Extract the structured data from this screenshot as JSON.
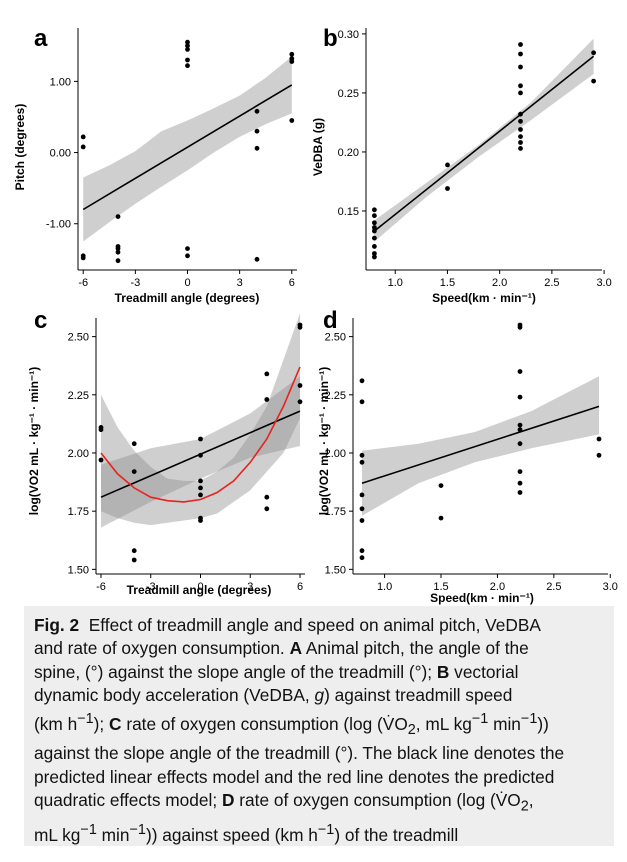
{
  "chart_data": [
    {
      "panel": "a",
      "type": "scatter",
      "xlabel": "Treadmill angle (degrees)",
      "ylabel": "Pitch (degrees)",
      "xlim": [
        -6.3,
        6.3
      ],
      "ylim": [
        -1.65,
        1.75
      ],
      "xticks": [
        -6,
        -3,
        0,
        3,
        6
      ],
      "yticks": [
        -1.0,
        0.0,
        1.0
      ],
      "ytick_labels": [
        "-1.00",
        "0.00",
        "1.00"
      ],
      "grid": false,
      "points": [
        [
          -6,
          0.22
        ],
        [
          -6,
          0.08
        ],
        [
          -6,
          -1.45
        ],
        [
          -6,
          -1.48
        ],
        [
          -4,
          -0.9
        ],
        [
          -4,
          -1.32
        ],
        [
          -4,
          -1.35
        ],
        [
          -4,
          -1.4
        ],
        [
          -4,
          -1.52
        ],
        [
          0,
          1.55
        ],
        [
          0,
          1.5
        ],
        [
          0,
          1.45
        ],
        [
          0,
          1.3
        ],
        [
          0,
          1.22
        ],
        [
          0,
          -1.35
        ],
        [
          0,
          -1.45
        ],
        [
          4,
          0.58
        ],
        [
          4,
          0.3
        ],
        [
          4,
          0.06
        ],
        [
          4,
          -1.5
        ],
        [
          6,
          1.38
        ],
        [
          6,
          1.32
        ],
        [
          6,
          1.28
        ],
        [
          6,
          0.45
        ]
      ],
      "fit_line": {
        "x": [
          -6,
          6
        ],
        "y": [
          -0.8,
          0.95
        ]
      },
      "confidence_band": {
        "x": [
          -6,
          -4.5,
          -3,
          -1.5,
          0,
          1.5,
          3,
          4.5,
          6
        ],
        "lower": [
          -1.25,
          -0.98,
          -0.72,
          -0.48,
          -0.25,
          0.0,
          0.22,
          0.4,
          0.55
        ],
        "upper": [
          -0.35,
          -0.18,
          0.02,
          0.3,
          0.45,
          0.62,
          0.8,
          1.05,
          1.35
        ]
      }
    },
    {
      "panel": "b",
      "type": "scatter",
      "xlabel": "Speed(km · min⁻¹)",
      "ylabel": "VeDBA (g)",
      "xlim": [
        0.72,
        2.98
      ],
      "ylim": [
        0.1,
        0.305
      ],
      "xticks": [
        1.0,
        1.5,
        2.0,
        2.5,
        3.0
      ],
      "xtick_labels": [
        "1.0",
        "1.5",
        "2.0",
        "2.5",
        "3.0"
      ],
      "yticks": [
        0.15,
        0.2,
        0.25,
        0.3
      ],
      "ytick_labels": [
        "0.15",
        "0.20",
        "0.25",
        "0.30"
      ],
      "grid": false,
      "points": [
        [
          0.8,
          0.151
        ],
        [
          0.8,
          0.146
        ],
        [
          0.8,
          0.14
        ],
        [
          0.8,
          0.136
        ],
        [
          0.8,
          0.133
        ],
        [
          0.8,
          0.127
        ],
        [
          0.8,
          0.12
        ],
        [
          0.8,
          0.114
        ],
        [
          0.8,
          0.111
        ],
        [
          1.5,
          0.189
        ],
        [
          1.5,
          0.169
        ],
        [
          2.2,
          0.291
        ],
        [
          2.2,
          0.283
        ],
        [
          2.2,
          0.272
        ],
        [
          2.2,
          0.256
        ],
        [
          2.2,
          0.25
        ],
        [
          2.2,
          0.232
        ],
        [
          2.2,
          0.226
        ],
        [
          2.2,
          0.219
        ],
        [
          2.2,
          0.213
        ],
        [
          2.2,
          0.208
        ],
        [
          2.2,
          0.203
        ],
        [
          2.9,
          0.284
        ],
        [
          2.9,
          0.26
        ]
      ],
      "fit_line": {
        "x": [
          0.8,
          2.9
        ],
        "y": [
          0.133,
          0.281
        ]
      },
      "confidence_band": {
        "x": [
          0.8,
          1.3,
          1.8,
          2.3,
          2.9
        ],
        "lower": [
          0.124,
          0.162,
          0.196,
          0.227,
          0.266
        ],
        "upper": [
          0.142,
          0.174,
          0.206,
          0.242,
          0.296
        ]
      }
    },
    {
      "panel": "c",
      "type": "scatter",
      "xlabel": "Treadmill angle (degrees)",
      "ylabel": "log(VO2 mL · kg⁻¹ · min⁻¹)",
      "xlim": [
        -6.3,
        6.3
      ],
      "ylim": [
        1.48,
        2.58
      ],
      "xticks": [
        -6,
        -3,
        0,
        3,
        6
      ],
      "yticks": [
        1.5,
        1.75,
        2.0,
        2.25,
        2.5
      ],
      "ytick_labels": [
        "1.50",
        "1.75",
        "2.00",
        "2.25",
        "2.50"
      ],
      "grid": false,
      "points": [
        [
          -6,
          2.11
        ],
        [
          -6,
          2.1
        ],
        [
          -6,
          1.97
        ],
        [
          -4,
          2.04
        ],
        [
          -4,
          1.92
        ],
        [
          -4,
          1.58
        ],
        [
          -4,
          1.54
        ],
        [
          0,
          2.06
        ],
        [
          0,
          1.99
        ],
        [
          0,
          1.88
        ],
        [
          0,
          1.85
        ],
        [
          0,
          1.82
        ],
        [
          0,
          1.72
        ],
        [
          0,
          1.71
        ],
        [
          4,
          2.34
        ],
        [
          4,
          2.23
        ],
        [
          4,
          1.81
        ],
        [
          4,
          1.76
        ],
        [
          6,
          2.55
        ],
        [
          6,
          2.54
        ],
        [
          6,
          2.29
        ],
        [
          6,
          2.22
        ]
      ],
      "linear_fit": {
        "x": [
          -6,
          6
        ],
        "y": [
          1.81,
          2.18
        ]
      },
      "quadratic_fit": {
        "x": [
          -6,
          -5,
          -4,
          -3,
          -2,
          -1,
          0,
          1,
          2,
          3,
          4,
          5,
          6
        ],
        "y": [
          2.0,
          1.91,
          1.85,
          1.81,
          1.795,
          1.79,
          1.8,
          1.83,
          1.88,
          1.96,
          2.06,
          2.2,
          2.37
        ]
      },
      "linear_band": {
        "x": [
          -6,
          -3,
          0,
          3,
          6
        ],
        "lower": [
          1.68,
          1.79,
          1.89,
          1.98,
          2.03
        ],
        "upper": [
          1.95,
          2.02,
          2.06,
          2.17,
          2.33
        ]
      },
      "quadratic_band": {
        "x": [
          -6,
          -5,
          -4,
          -3,
          -2,
          -1,
          0,
          1,
          2,
          3,
          4,
          5,
          6
        ],
        "lower": [
          1.75,
          1.72,
          1.7,
          1.69,
          1.7,
          1.71,
          1.72,
          1.74,
          1.79,
          1.84,
          1.92,
          2.0,
          2.15
        ],
        "upper": [
          2.25,
          2.11,
          2.01,
          1.94,
          1.89,
          1.88,
          1.88,
          1.92,
          1.98,
          2.08,
          2.2,
          2.4,
          2.6
        ]
      }
    },
    {
      "panel": "d",
      "type": "scatter",
      "xlabel": "Speed(km · min⁻¹)",
      "ylabel": "log(VO2 mL · kg⁻¹ · min⁻¹)",
      "xlim": [
        0.72,
        2.98
      ],
      "ylim": [
        1.48,
        2.58
      ],
      "xticks": [
        1.0,
        1.5,
        2.0,
        2.5,
        3.0
      ],
      "xtick_labels": [
        "1.0",
        "1.5",
        "2.0",
        "2.5",
        "3.0"
      ],
      "yticks": [
        1.5,
        1.75,
        2.0,
        2.25,
        2.5
      ],
      "ytick_labels": [
        "1.50",
        "1.75",
        "2.00",
        "2.25",
        "2.50"
      ],
      "grid": false,
      "points": [
        [
          0.8,
          2.31
        ],
        [
          0.8,
          2.22
        ],
        [
          0.8,
          1.99
        ],
        [
          0.8,
          1.96
        ],
        [
          0.8,
          1.82
        ],
        [
          0.8,
          1.76
        ],
        [
          0.8,
          1.71
        ],
        [
          0.8,
          1.58
        ],
        [
          0.8,
          1.55
        ],
        [
          1.5,
          1.86
        ],
        [
          1.5,
          1.72
        ],
        [
          2.2,
          2.55
        ],
        [
          2.2,
          2.54
        ],
        [
          2.2,
          2.35
        ],
        [
          2.2,
          2.24
        ],
        [
          2.2,
          2.12
        ],
        [
          2.2,
          2.1
        ],
        [
          2.2,
          2.04
        ],
        [
          2.2,
          1.92
        ],
        [
          2.2,
          1.87
        ],
        [
          2.2,
          1.83
        ],
        [
          2.9,
          2.06
        ],
        [
          2.9,
          1.99
        ]
      ],
      "fit_line": {
        "x": [
          0.8,
          2.9
        ],
        "y": [
          1.87,
          2.2
        ]
      },
      "confidence_band": {
        "x": [
          0.8,
          1.3,
          1.8,
          2.3,
          2.9
        ],
        "lower": [
          1.73,
          1.87,
          1.96,
          2.02,
          2.08
        ],
        "upper": [
          2.01,
          2.04,
          2.09,
          2.18,
          2.33
        ]
      }
    }
  ],
  "caption": {
    "label": "Fig. 2",
    "title": "Effect of treadmill angle and speed on animal pitch, VeDBA and rate of oxygen consumption.",
    "l1": "Effect of treadmill angle and speed on animal pitch, VeDBA",
    "l2": "and rate of oxygen consumption.",
    "l2a": "Animal pitch, the angle of the",
    "l3": "spine, (°) against the slope angle of the treadmill (°);",
    "l3b": "vectorial",
    "l4a": "dynamic body acceleration (VeDBA,",
    "l4g": "g",
    "l4b": ") against treadmill speed",
    "l5a": "(km h",
    "l5b": ");",
    "l5c": "rate of oxygen consumption (log (",
    "l5d": "O",
    "l5e": ", mL kg",
    "l5f": " min",
    "l5g": "))",
    "l6": "against the slope angle of the treadmill (°). The black line denotes the",
    "l7": "predicted linear effects model and the red line denotes the predicted",
    "l8a": "quadratic effects model;",
    "l8b": "rate of oxygen consumption (log (",
    "l8c": "O",
    "l9a": "mL kg",
    "l9b": " min",
    "l9c": ")) against speed (km h",
    "l9d": ") of the treadmill",
    "A": "A",
    "B": "B",
    "C": "C",
    "D": "D",
    "sup_minus1": "−1",
    "sub2": "2",
    "v_dot": "V̇"
  }
}
